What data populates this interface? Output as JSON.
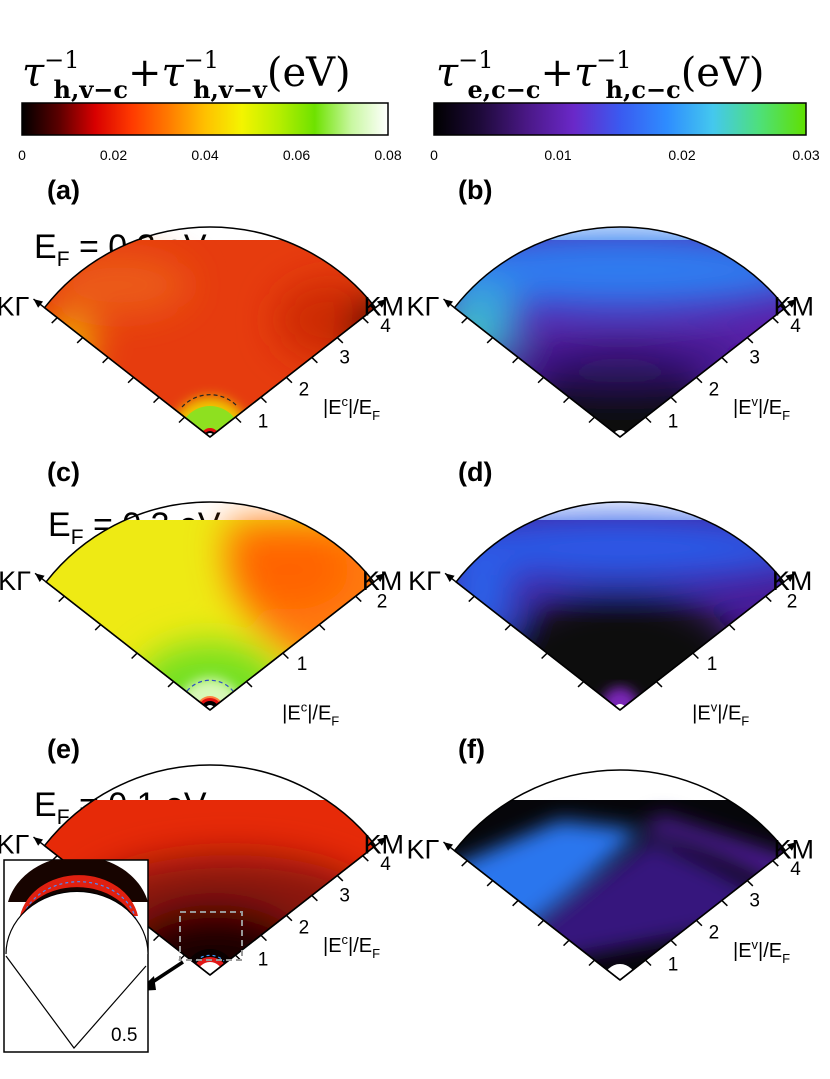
{
  "colorbars": [
    {
      "title": "τ⁻¹h,v−c+τ⁻¹h,v−v(eV)",
      "title_parts": {
        "tau": "τ",
        "exp": "−1",
        "sub1": "h,v−c",
        "plus": "+",
        "sub2": "h,v−v",
        "unit": "(eV)"
      },
      "ticks": [
        "0",
        "0.02",
        "0.04",
        "0.06",
        "0.08"
      ],
      "range": [
        0,
        0.08
      ],
      "colormap": [
        "#000000",
        "#5a0000",
        "#d80000",
        "#ff3a00",
        "#ff7a00",
        "#ffc000",
        "#f4f400",
        "#b8ee00",
        "#6ee200",
        "#c8f7a0",
        "#ffffff"
      ]
    },
    {
      "title": "τ⁻¹e,c−c+τ⁻¹h,c−c(eV)",
      "title_parts": {
        "tau": "τ",
        "exp": "−1",
        "sub1": "e,c−c",
        "plus": "+",
        "sub2": "h,c−c",
        "unit": "(eV)"
      },
      "ticks": [
        "0",
        "0.01",
        "0.02",
        "0.03"
      ],
      "range": [
        0,
        0.03
      ],
      "colormap": [
        "#000000",
        "#1e0a3a",
        "#4a1886",
        "#6a28c8",
        "#3a5af0",
        "#2e8cff",
        "#44c8ee",
        "#4ee07a",
        "#60e000"
      ]
    }
  ],
  "panels": [
    {
      "label": "(a)",
      "ef_text": "E",
      "ef_sub": "F",
      "ef_rest": " = 0.2 eV",
      "left_axis": "KΓ",
      "right_axis": "KM",
      "radial_ticks": [
        "1",
        "2",
        "3",
        "4"
      ],
      "radial_label": "|E",
      "radial_sup": "c",
      "radial_label2": "|/E",
      "radial_sub": "F",
      "colormap": 0
    },
    {
      "label": "(b)",
      "left_axis": "KΓ",
      "right_axis": "KM",
      "radial_ticks": [
        "1",
        "2",
        "3",
        "4"
      ],
      "radial_label": "|E",
      "radial_sup": "v",
      "radial_label2": "|/E",
      "radial_sub": "F",
      "colormap": 1
    },
    {
      "label": "(c)",
      "ef_text": "E",
      "ef_sub": "F",
      "ef_rest": " = 0.3 eV",
      "left_axis": "KΓ",
      "right_axis": "KM",
      "radial_ticks": [
        "1",
        "2"
      ],
      "radial_label": "|E",
      "radial_sup": "c",
      "radial_label2": "|/E",
      "radial_sub": "F",
      "colormap": 0
    },
    {
      "label": "(d)",
      "left_axis": "KΓ",
      "right_axis": "KM",
      "radial_ticks": [
        "1",
        "2"
      ],
      "radial_label": "|E",
      "radial_sup": "v",
      "radial_label2": "|/E",
      "radial_sub": "F",
      "colormap": 1
    },
    {
      "label": "(e)",
      "ef_text": "E",
      "ef_sub": "F",
      "ef_rest": " = 0.1 eV",
      "left_axis": "KΓ",
      "right_axis": "KM",
      "radial_ticks": [
        "1",
        "2",
        "3",
        "4"
      ],
      "radial_label": "|E",
      "radial_sup": "c",
      "radial_label2": "|/E",
      "radial_sub": "F",
      "colormap": 0
    },
    {
      "label": "(f)",
      "left_axis": "KΓ",
      "right_axis": "KM",
      "radial_ticks": [
        "1",
        "2",
        "3",
        "4"
      ],
      "radial_label": "|E",
      "radial_sup": "v",
      "radial_label2": "|/E",
      "radial_sub": "F",
      "colormap": 1
    }
  ],
  "inset": {
    "tick": "0.5"
  },
  "chart_data": {
    "type": "heatmap",
    "colorbar_ranges_eV": [
      [
        0,
        0.08
      ],
      [
        0,
        0.03
      ]
    ],
    "panels": [
      {
        "label": "(a)",
        "E_F_eV": 0.2,
        "radial_max": 4,
        "colors": {
          "rim": "#e42000",
          "middle": "#e83a0c",
          "upper_right": "#8a1000",
          "left_edge": "#f0c800",
          "center": "#8ee020",
          "dashed_ring": "#222222"
        }
      },
      {
        "label": "(b)",
        "E_F_eV": 0.2,
        "radial_max": 4,
        "colors": {
          "rim": "#2e7cf0",
          "middle": "#5a20b0",
          "center": "#0a0a12",
          "left_edge": "#46d0a0"
        }
      },
      {
        "label": "(c)",
        "E_F_eV": 0.3,
        "radial_max": 2.5,
        "colors": {
          "left": "#eaea10",
          "right": "#ff7a10",
          "center": "#72e020",
          "ring": "#d8f8b8",
          "dashed_ring": "#3050c0"
        }
      },
      {
        "label": "(d)",
        "E_F_eV": 0.3,
        "radial_max": 2.5,
        "colors": {
          "rim": "#2c5ae8",
          "middle": "#4a1a96",
          "center": "#0a0a0e",
          "core": "#7a28b8"
        }
      },
      {
        "label": "(e)",
        "E_F_eV": 0.1,
        "radial_max": 4,
        "colors": {
          "rim": "#e62a08",
          "middle": "#8a1408",
          "center": "#1a0400",
          "ring": "#e01818"
        }
      },
      {
        "label": "(f)",
        "E_F_eV": 0.1,
        "radial_max": 4,
        "colors": {
          "rim": "#2a76ee",
          "middle": "#4a1a90",
          "center": "#06060a"
        }
      }
    ]
  }
}
